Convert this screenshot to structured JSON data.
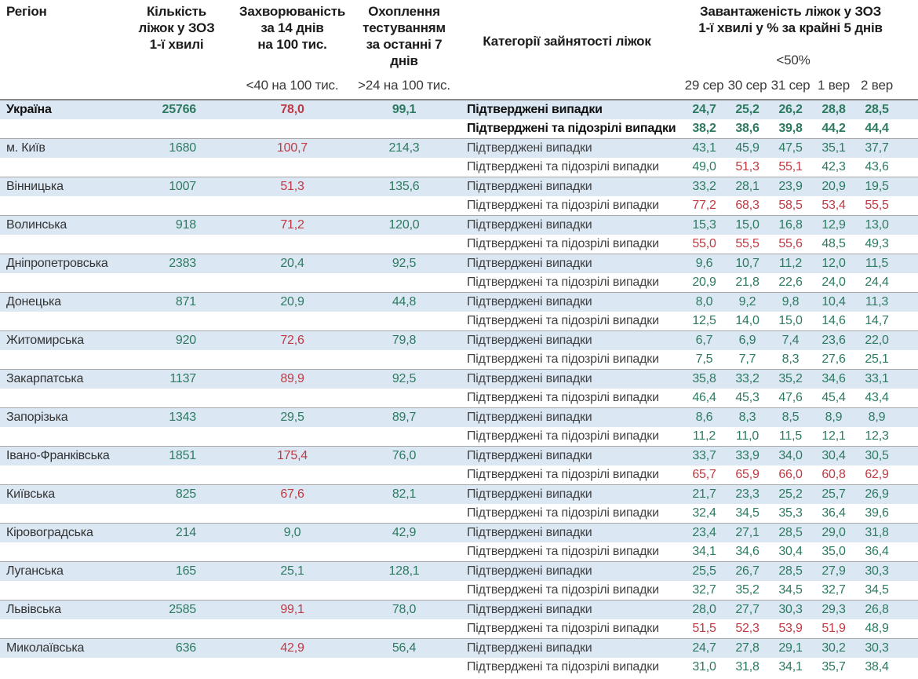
{
  "header": {
    "region": "Регіон",
    "beds": "Кількість\nліжок у ЗОЗ\n1-ї хвилі",
    "incidence": "Захворюваність\nза 14 днів\nна 100 тис.",
    "incidence_threshold": "<40 на 100 тис.",
    "testing": "Охоплення\nтестуванням\nза останні 7 днів",
    "testing_threshold": ">24 на 100 тис.",
    "category": "Категорії зайнятості ліжок",
    "load": "Завантаженість ліжок у ЗОЗ\n1-ї хвилі у % за крайні 5 днів",
    "load_threshold": "<50%",
    "dates": [
      "29 сер",
      "30 сер",
      "31 сер",
      "1 вер",
      "2 вер"
    ]
  },
  "row_labels": {
    "confirmed": "Підтверджені випадки",
    "confirmed_suspected": "Підтверджені та підозрілі випадки"
  },
  "colors": {
    "green": "#2d7a60",
    "red": "#c03943",
    "row_blue": "#dbe8f4"
  },
  "regions": [
    {
      "name": "Україна",
      "bold": true,
      "beds": "25766",
      "beds_color": "g",
      "incidence": "78,0",
      "incidence_color": "r",
      "testing": "99,1",
      "testing_color": "g",
      "confirmed": {
        "values": [
          "24,7",
          "25,2",
          "26,2",
          "28,8",
          "28,5"
        ],
        "colors": "ggggg"
      },
      "suspected": {
        "values": [
          "38,2",
          "38,6",
          "39,8",
          "44,2",
          "44,4"
        ],
        "colors": "ggggg"
      }
    },
    {
      "name": "м. Київ",
      "bold": false,
      "beds": "1680",
      "beds_color": "g",
      "incidence": "100,7",
      "incidence_color": "r",
      "testing": "214,3",
      "testing_color": "g",
      "confirmed": {
        "values": [
          "43,1",
          "45,9",
          "47,5",
          "35,1",
          "37,7"
        ],
        "colors": "ggggg"
      },
      "suspected": {
        "values": [
          "49,0",
          "51,3",
          "55,1",
          "42,3",
          "43,6"
        ],
        "colors": "grrgg"
      }
    },
    {
      "name": "Вінницька",
      "bold": false,
      "beds": "1007",
      "beds_color": "g",
      "incidence": "51,3",
      "incidence_color": "r",
      "testing": "135,6",
      "testing_color": "g",
      "confirmed": {
        "values": [
          "33,2",
          "28,1",
          "23,9",
          "20,9",
          "19,5"
        ],
        "colors": "ggggg"
      },
      "suspected": {
        "values": [
          "77,2",
          "68,3",
          "58,5",
          "53,4",
          "55,5"
        ],
        "colors": "rrrrr"
      }
    },
    {
      "name": "Волинська",
      "bold": false,
      "beds": "918",
      "beds_color": "g",
      "incidence": "71,2",
      "incidence_color": "r",
      "testing": "120,0",
      "testing_color": "g",
      "confirmed": {
        "values": [
          "15,3",
          "15,0",
          "16,8",
          "12,9",
          "13,0"
        ],
        "colors": "ggggg"
      },
      "suspected": {
        "values": [
          "55,0",
          "55,5",
          "55,6",
          "48,5",
          "49,3"
        ],
        "colors": "rrrgg"
      }
    },
    {
      "name": "Дніпропетровська",
      "bold": false,
      "beds": "2383",
      "beds_color": "g",
      "incidence": "20,4",
      "incidence_color": "g",
      "testing": "92,5",
      "testing_color": "g",
      "confirmed": {
        "values": [
          "9,6",
          "10,7",
          "11,2",
          "12,0",
          "11,5"
        ],
        "colors": "ggggg"
      },
      "suspected": {
        "values": [
          "20,9",
          "21,8",
          "22,6",
          "24,0",
          "24,4"
        ],
        "colors": "ggggg"
      }
    },
    {
      "name": "Донецька",
      "bold": false,
      "beds": "871",
      "beds_color": "g",
      "incidence": "20,9",
      "incidence_color": "g",
      "testing": "44,8",
      "testing_color": "g",
      "confirmed": {
        "values": [
          "8,0",
          "9,2",
          "9,8",
          "10,4",
          "11,3"
        ],
        "colors": "ggggg"
      },
      "suspected": {
        "values": [
          "12,5",
          "14,0",
          "15,0",
          "14,6",
          "14,7"
        ],
        "colors": "ggggg"
      }
    },
    {
      "name": "Житомирська",
      "bold": false,
      "beds": "920",
      "beds_color": "g",
      "incidence": "72,6",
      "incidence_color": "r",
      "testing": "79,8",
      "testing_color": "g",
      "confirmed": {
        "values": [
          "6,7",
          "6,9",
          "7,4",
          "23,6",
          "22,0"
        ],
        "colors": "ggggg"
      },
      "suspected": {
        "values": [
          "7,5",
          "7,7",
          "8,3",
          "27,6",
          "25,1"
        ],
        "colors": "ggggg"
      }
    },
    {
      "name": "Закарпатська",
      "bold": false,
      "beds": "1137",
      "beds_color": "g",
      "incidence": "89,9",
      "incidence_color": "r",
      "testing": "92,5",
      "testing_color": "g",
      "confirmed": {
        "values": [
          "35,8",
          "33,2",
          "35,2",
          "34,6",
          "33,1"
        ],
        "colors": "ggggg"
      },
      "suspected": {
        "values": [
          "46,4",
          "45,3",
          "47,6",
          "45,4",
          "43,4"
        ],
        "colors": "ggggg"
      }
    },
    {
      "name": "Запорізька",
      "bold": false,
      "beds": "1343",
      "beds_color": "g",
      "incidence": "29,5",
      "incidence_color": "g",
      "testing": "89,7",
      "testing_color": "g",
      "confirmed": {
        "values": [
          "8,6",
          "8,3",
          "8,5",
          "8,9",
          "8,9"
        ],
        "colors": "ggggg"
      },
      "suspected": {
        "values": [
          "11,2",
          "11,0",
          "11,5",
          "12,1",
          "12,3"
        ],
        "colors": "ggggg"
      }
    },
    {
      "name": "Івано-Франківська",
      "bold": false,
      "beds": "1851",
      "beds_color": "g",
      "incidence": "175,4",
      "incidence_color": "r",
      "testing": "76,0",
      "testing_color": "g",
      "confirmed": {
        "values": [
          "33,7",
          "33,9",
          "34,0",
          "30,4",
          "30,5"
        ],
        "colors": "ggggg"
      },
      "suspected": {
        "values": [
          "65,7",
          "65,9",
          "66,0",
          "60,8",
          "62,9"
        ],
        "colors": "rrrrr"
      }
    },
    {
      "name": "Київська",
      "bold": false,
      "beds": "825",
      "beds_color": "g",
      "incidence": "67,6",
      "incidence_color": "r",
      "testing": "82,1",
      "testing_color": "g",
      "confirmed": {
        "values": [
          "21,7",
          "23,3",
          "25,2",
          "25,7",
          "26,9"
        ],
        "colors": "ggggg"
      },
      "suspected": {
        "values": [
          "32,4",
          "34,5",
          "35,3",
          "36,4",
          "39,6"
        ],
        "colors": "ggggg"
      }
    },
    {
      "name": "Кіровоградська",
      "bold": false,
      "beds": "214",
      "beds_color": "g",
      "incidence": "9,0",
      "incidence_color": "g",
      "testing": "42,9",
      "testing_color": "g",
      "confirmed": {
        "values": [
          "23,4",
          "27,1",
          "28,5",
          "29,0",
          "31,8"
        ],
        "colors": "ggggg"
      },
      "suspected": {
        "values": [
          "34,1",
          "34,6",
          "30,4",
          "35,0",
          "36,4"
        ],
        "colors": "ggggg"
      }
    },
    {
      "name": "Луганська",
      "bold": false,
      "beds": "165",
      "beds_color": "g",
      "incidence": "25,1",
      "incidence_color": "g",
      "testing": "128,1",
      "testing_color": "g",
      "confirmed": {
        "values": [
          "25,5",
          "26,7",
          "28,5",
          "27,9",
          "30,3"
        ],
        "colors": "ggggg"
      },
      "suspected": {
        "values": [
          "32,7",
          "35,2",
          "34,5",
          "32,7",
          "34,5"
        ],
        "colors": "ggggg"
      }
    },
    {
      "name": "Львівська",
      "bold": false,
      "beds": "2585",
      "beds_color": "g",
      "incidence": "99,1",
      "incidence_color": "r",
      "testing": "78,0",
      "testing_color": "g",
      "confirmed": {
        "values": [
          "28,0",
          "27,7",
          "30,3",
          "29,3",
          "26,8"
        ],
        "colors": "ggggg"
      },
      "suspected": {
        "values": [
          "51,5",
          "52,3",
          "53,9",
          "51,9",
          "48,9"
        ],
        "colors": "rrrrg"
      }
    },
    {
      "name": "Миколаївська",
      "bold": false,
      "beds": "636",
      "beds_color": "g",
      "incidence": "42,9",
      "incidence_color": "r",
      "testing": "56,4",
      "testing_color": "g",
      "confirmed": {
        "values": [
          "24,7",
          "27,8",
          "29,1",
          "30,2",
          "30,3"
        ],
        "colors": "ggggg"
      },
      "suspected": {
        "values": [
          "31,0",
          "31,8",
          "34,1",
          "35,7",
          "38,4"
        ],
        "colors": "ggggg"
      }
    }
  ]
}
